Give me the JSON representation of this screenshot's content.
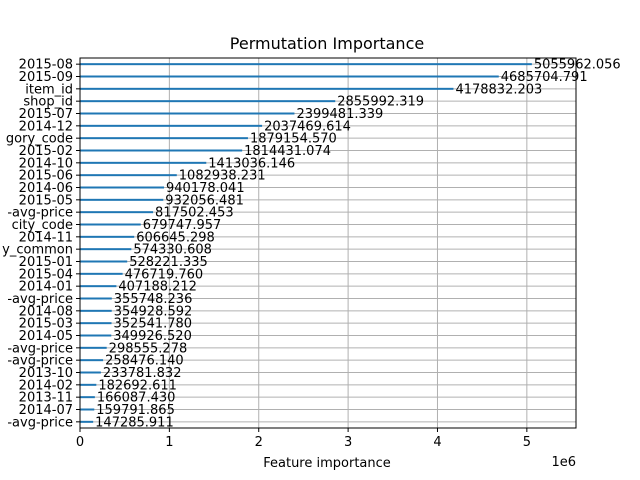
{
  "chart_data": {
    "type": "bar",
    "orientation": "horizontal",
    "title": "Permutation Importance",
    "xlabel": "Feature importance",
    "ylabel": "",
    "x_multiplier_label": "1e6",
    "xlim": [
      0,
      5.55
    ],
    "x_ticks": [
      0,
      1,
      2,
      3,
      4,
      5
    ],
    "grid": true,
    "bar_color": "#1f77b4",
    "categories": [
      "2015-08",
      "2015-09",
      "item_id",
      "shop_id",
      "2015-07",
      "2014-12",
      "gory_code",
      "2015-02",
      "2014-10",
      "2015-06",
      "2014-06",
      "2015-05",
      "-avg-price",
      "city_code",
      "2014-11",
      "y_common",
      "2015-01",
      "2015-04",
      "2014-01",
      "-avg-price",
      "2014-08",
      "2015-03",
      "2014-05",
      "-avg-price",
      "-avg-price",
      "2013-10",
      "2014-02",
      "2013-11",
      "2014-07",
      "-avg-price"
    ],
    "values": [
      5055962.056,
      4685704.791,
      4178832.203,
      2855992.319,
      2399481.339,
      2037469.614,
      1879154.57,
      1814431.074,
      1413036.146,
      1082938.231,
      940178.041,
      932056.481,
      817502.453,
      679747.957,
      606645.298,
      574330.608,
      528221.335,
      476719.76,
      407188.212,
      355748.236,
      354928.592,
      352541.78,
      349926.52,
      298555.278,
      258476.14,
      233781.832,
      182692.611,
      166087.43,
      159791.865,
      147285.911
    ],
    "value_labels": [
      "5055962.056",
      "4685704.791",
      "4178832.203",
      "2855992.319",
      "2399481.339",
      "2037469.614",
      "1879154.570",
      "1814431.074",
      "1413036.146",
      "1082938.231",
      "940178.041",
      "932056.481",
      "817502.453",
      "679747.957",
      "606645.298",
      "574330.608",
      "528221.335",
      "476719.760",
      "407188.212",
      "355748.236",
      "354928.592",
      "352541.780",
      "349926.520",
      "298555.278",
      "258476.140",
      "233781.832",
      "182692.611",
      "166087.430",
      "159791.865",
      "147285.911"
    ]
  }
}
